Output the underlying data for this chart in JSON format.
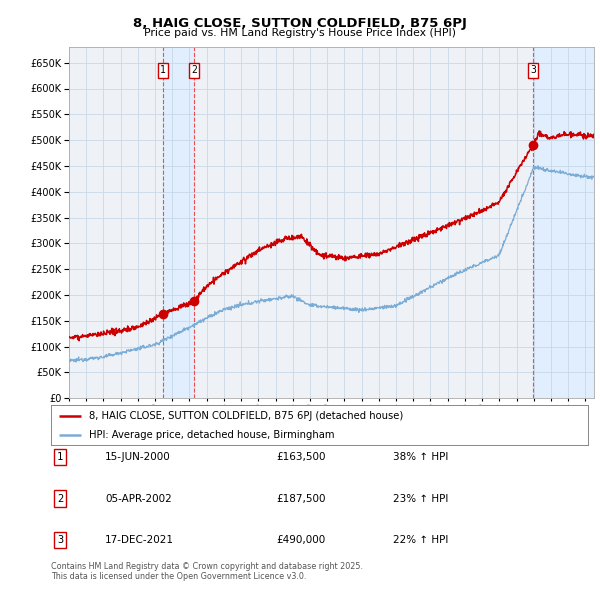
{
  "title": "8, HAIG CLOSE, SUTTON COLDFIELD, B75 6PJ",
  "subtitle": "Price paid vs. HM Land Registry's House Price Index (HPI)",
  "ylim": [
    0,
    680000
  ],
  "yticks": [
    0,
    50000,
    100000,
    150000,
    200000,
    250000,
    300000,
    350000,
    400000,
    450000,
    500000,
    550000,
    600000,
    650000
  ],
  "xlim_start": 1995.0,
  "xlim_end": 2025.5,
  "sale_dates": [
    2000.46,
    2002.26,
    2021.96
  ],
  "sale_prices": [
    163500,
    187500,
    490000
  ],
  "sale_labels": [
    "1",
    "2",
    "3"
  ],
  "red_line_color": "#cc0000",
  "blue_line_color": "#7aacd6",
  "shade_color": "#ddeeff",
  "grid_color": "#c8d8e8",
  "background_color": "#f0f4f8",
  "chart_bg": "#eef2f7",
  "legend_label_red": "8, HAIG CLOSE, SUTTON COLDFIELD, B75 6PJ (detached house)",
  "legend_label_blue": "HPI: Average price, detached house, Birmingham",
  "table_entries": [
    {
      "label": "1",
      "date": "15-JUN-2000",
      "price": "£163,500",
      "change": "38% ↑ HPI"
    },
    {
      "label": "2",
      "date": "05-APR-2002",
      "price": "£187,500",
      "change": "23% ↑ HPI"
    },
    {
      "label": "3",
      "date": "17-DEC-2021",
      "price": "£490,000",
      "change": "22% ↑ HPI"
    }
  ],
  "footer": "Contains HM Land Registry data © Crown copyright and database right 2025.\nThis data is licensed under the Open Government Licence v3.0."
}
